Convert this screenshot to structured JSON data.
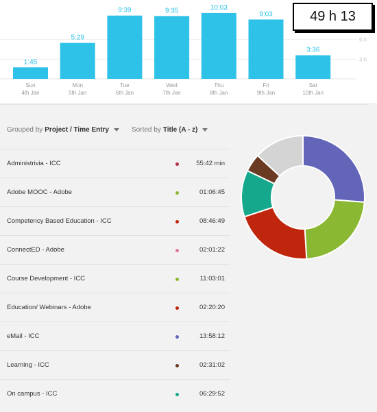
{
  "total": "49 h 13",
  "chart_data": {
    "type": "bar",
    "categories": [
      "Sun 4th Jan",
      "Mon 5th Jan",
      "Tue 6th Jan",
      "Wed 7th Jan",
      "Thu 8th Jan",
      "Fri 9th Jan",
      "Sat 10th Jan"
    ],
    "days": [
      {
        "day": "Sun",
        "date": "4th Jan",
        "label": "1:45"
      },
      {
        "day": "Mon",
        "date": "5th Jan",
        "label": "5:29"
      },
      {
        "day": "Tue",
        "date": "6th Jan",
        "label": "9:39"
      },
      {
        "day": "Wed",
        "date": "7th Jan",
        "label": "9:35"
      },
      {
        "day": "Thu",
        "date": "8th Jan",
        "label": "10:03"
      },
      {
        "day": "Fri",
        "date": "9th Jan",
        "label": "9:03"
      },
      {
        "day": "Sat",
        "date": "10th Jan",
        "label": "3:36"
      }
    ],
    "values": [
      1.75,
      5.483,
      9.65,
      9.583,
      10.05,
      9.05,
      3.6
    ],
    "yticks": [
      "3 h",
      "6 h"
    ],
    "ytick_values": [
      3,
      6
    ],
    "ylim": [
      0,
      11.4
    ],
    "color": "#2ec2e8"
  },
  "controls": {
    "grouped_prefix": "Grouped by",
    "grouped_value": "Project / Time Entry",
    "sorted_prefix": "Sorted by",
    "sorted_value": "Title (A - z)"
  },
  "entries": [
    {
      "name": "Administrivia - ICC",
      "duration": "55:42 min",
      "color": "#b0304a"
    },
    {
      "name": "Adobe MOOC - Adobe",
      "duration": "01:06:45",
      "color": "#8ab833"
    },
    {
      "name": "Competency Based Education - ICC",
      "duration": "08:46:49",
      "color": "#c0260d"
    },
    {
      "name": "ConnectED - Adobe",
      "duration": "02:01:22",
      "color": "#e0789a"
    },
    {
      "name": "Course Development - ICC",
      "duration": "11:03:01",
      "color": "#8ab833"
    },
    {
      "name": "Education/ Webinars - Adobe",
      "duration": "02:20:20",
      "color": "#c0260d"
    },
    {
      "name": "eMail - ICC",
      "duration": "13:58:12",
      "color": "#6366b8"
    },
    {
      "name": "Learning - ICC",
      "duration": "02:31:02",
      "color": "#6a3a23"
    },
    {
      "name": "On campus - ICC",
      "duration": "06:29:52",
      "color": "#16a88c"
    }
  ],
  "donut": {
    "type": "pie",
    "slices": [
      {
        "value": 13.97,
        "color": "#6366b8"
      },
      {
        "value": 12.17,
        "color": "#8ab833"
      },
      {
        "value": 11.12,
        "color": "#c0260d"
      },
      {
        "value": 6.5,
        "color": "#16a88c"
      },
      {
        "value": 2.52,
        "color": "#6a3a23"
      },
      {
        "value": 7.0,
        "color": "#d4d4d4"
      }
    ]
  }
}
